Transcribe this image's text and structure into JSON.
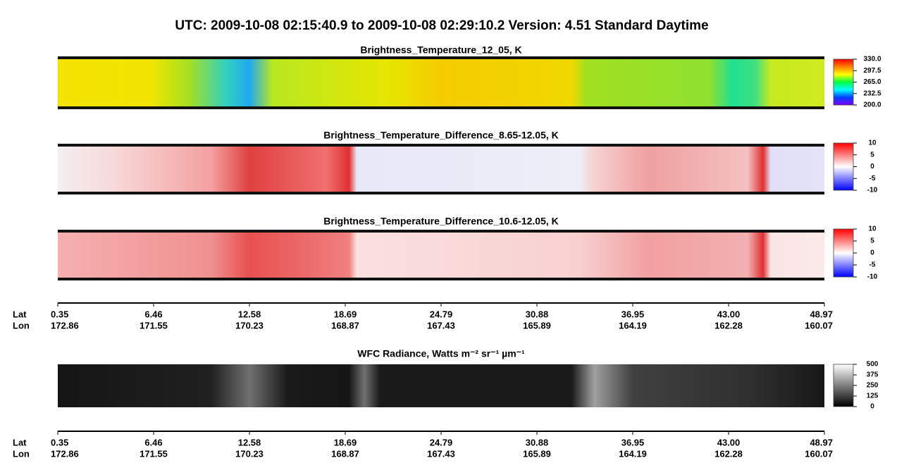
{
  "title": "UTC:  2009-10-08   02:15:40.9  to  2009-10-08   02:29:10.2    Version: 4.51  Standard Daytime",
  "panels": [
    {
      "title": "Brightness_Temperature_12_05, K",
      "lim": [
        200,
        330
      ],
      "ticks": [
        {
          "value": 330,
          "label": "330.0"
        },
        297.5,
        {
          "value": 265,
          "label": "265.0"
        },
        232.5,
        {
          "value": 200,
          "label": "200.0"
        }
      ],
      "colorbar": [
        "#8000ff",
        "#0040ff",
        "#00ffff",
        "#00ff40",
        "#ffff00",
        "#ff8000",
        "#ff0000"
      ]
    },
    {
      "title": "Brightness_Temperature_Difference_8.65-12.05, K",
      "lim": [
        -10,
        10
      ],
      "ticks": [
        10,
        5,
        0,
        -5,
        -10
      ],
      "colorbar": [
        "#0000ff",
        "#ffffff",
        "#ff0000"
      ]
    },
    {
      "title": "Brightness_Temperature_Difference_10.6-12.05, K",
      "lim": [
        -10,
        10
      ],
      "ticks": [
        10,
        5,
        0,
        -5,
        -10
      ],
      "colorbar": [
        "#0000ff",
        "#ffffff",
        "#ff0000"
      ]
    },
    {
      "title": "WFC Radiance, Watts m⁻² sr⁻¹ µm⁻¹",
      "lim": [
        0,
        500
      ],
      "ticks": [
        500,
        375,
        250,
        125,
        0
      ],
      "colorbar": [
        "#000000",
        "#ffffff"
      ]
    }
  ],
  "axis": {
    "row_labels": [
      "Lat",
      "Lon"
    ],
    "lat": [
      "0.35",
      "6.46",
      "12.58",
      "18.69",
      "24.79",
      "30.88",
      "36.95",
      "43.00",
      "48.97"
    ],
    "lon": [
      "172.86",
      "171.55",
      "170.23",
      "168.87",
      "167.43",
      "165.89",
      "164.19",
      "162.28",
      "160.07"
    ]
  }
}
